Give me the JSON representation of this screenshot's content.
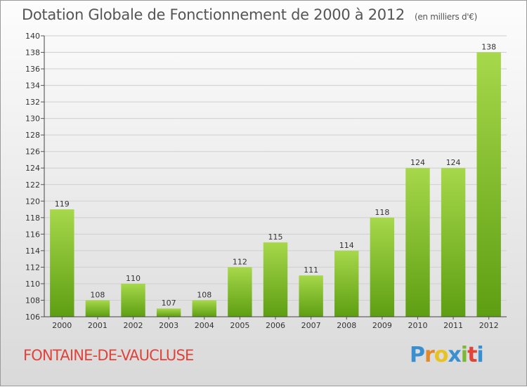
{
  "title": "Dotation Globale de Fonctionnement de 2000 à 2012",
  "unit_note": "(en milliers d'€)",
  "commune": "FONTAINE-DE-VAUCLUSE",
  "logo": {
    "letters": [
      "P",
      "r",
      "o",
      "x",
      "i",
      "t",
      "i"
    ],
    "colors": [
      "#3a8fd0",
      "#e08a2a",
      "#e8c21e",
      "#3a8fd0",
      "#79b936",
      "#e0433a",
      "#3a8fd0"
    ]
  },
  "colors": {
    "bar_top": "#a6d84a",
    "bar_bottom": "#5e9e12",
    "commune_text": "#e0433a"
  },
  "chart_data": {
    "type": "bar",
    "categories": [
      "2000",
      "2001",
      "2002",
      "2003",
      "2004",
      "2005",
      "2006",
      "2007",
      "2008",
      "2009",
      "2010",
      "2011",
      "2012"
    ],
    "values": [
      119,
      108,
      110,
      107,
      108,
      112,
      115,
      111,
      114,
      118,
      124,
      124,
      138
    ],
    "ylim": [
      106,
      140
    ],
    "yticks": [
      106,
      108,
      110,
      112,
      114,
      116,
      118,
      120,
      122,
      124,
      126,
      128,
      130,
      132,
      134,
      136,
      138,
      140
    ],
    "grid": true,
    "title": "Dotation Globale de Fonctionnement de 2000 à 2012",
    "xlabel": "",
    "ylabel": ""
  }
}
